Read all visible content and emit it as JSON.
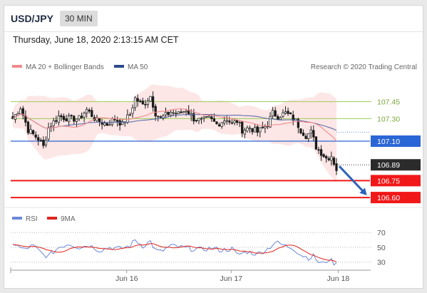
{
  "header": {
    "symbol": "USD/JPY",
    "timeframe": "30 MIN",
    "datetime": "Thursday, June 18, 2020 2:13:15 AM CET"
  },
  "legend": {
    "ma20_bollinger": "MA 20 + Bollinger Bands",
    "ma50": "MA 50",
    "credit": "Research © 2020 Trading Central",
    "rsi": "RSI",
    "rsi_ma": "9MA"
  },
  "colors": {
    "bollinger_fill": "#fde3e3",
    "ma20": "#f08a8a",
    "ma50": "#5a6ea8",
    "candle": "#1a1a1a",
    "green_level": "#9acd56",
    "blue_level": "#2b66d6",
    "red_level": "#f01818",
    "current_badge": "#2b2b2b",
    "arrow": "#2d63b8",
    "rsi": "#6b88d8",
    "rsi_ma": "#e0241c"
  },
  "chart_data": [
    {
      "type": "candlestick",
      "title": "USD/JPY",
      "timeframe": "30 MIN",
      "x_ticks": [
        {
          "label": "Jun 16",
          "bar": 43
        },
        {
          "label": "Jun 17",
          "bar": 84
        },
        {
          "label": "Jun 18",
          "bar": 126
        }
      ],
      "ylim": [
        106.55,
        107.65
      ],
      "bar_count": 128,
      "price_waypoints": [
        [
          0,
          107.3
        ],
        [
          3,
          107.4
        ],
        [
          6,
          107.2
        ],
        [
          10,
          107.12
        ],
        [
          12,
          107.05
        ],
        [
          14,
          107.22
        ],
        [
          18,
          107.32
        ],
        [
          22,
          107.3
        ],
        [
          26,
          107.3
        ],
        [
          29,
          107.38
        ],
        [
          33,
          107.28
        ],
        [
          37,
          107.25
        ],
        [
          40,
          107.3
        ],
        [
          43,
          107.25
        ],
        [
          46,
          107.34
        ],
        [
          48,
          107.48
        ],
        [
          51,
          107.42
        ],
        [
          54,
          107.5
        ],
        [
          56,
          107.35
        ],
        [
          58,
          107.3
        ],
        [
          62,
          107.36
        ],
        [
          65,
          107.34
        ],
        [
          68,
          107.38
        ],
        [
          71,
          107.3
        ],
        [
          74,
          107.28
        ],
        [
          77,
          107.3
        ],
        [
          80,
          107.25
        ],
        [
          84,
          107.3
        ],
        [
          86,
          107.25
        ],
        [
          88,
          107.28
        ],
        [
          90,
          107.2
        ],
        [
          93,
          107.22
        ],
        [
          96,
          107.18
        ],
        [
          100,
          107.25
        ],
        [
          102,
          107.35
        ],
        [
          104,
          107.32
        ],
        [
          107,
          107.35
        ],
        [
          109,
          107.32
        ],
        [
          111,
          107.28
        ],
        [
          113,
          107.2
        ],
        [
          115,
          107.15
        ],
        [
          117,
          107.18
        ],
        [
          119,
          107.05
        ],
        [
          121,
          107.0
        ],
        [
          123,
          106.95
        ],
        [
          125,
          106.97
        ],
        [
          127,
          106.85
        ]
      ],
      "levels": [
        {
          "value": 107.45,
          "label": "107.45",
          "kind": "resistance"
        },
        {
          "value": 107.3,
          "label": "107.30",
          "kind": "resistance"
        },
        {
          "value": 107.1,
          "label": "107.10",
          "kind": "pivot"
        },
        {
          "value": 106.89,
          "label": "106.89",
          "kind": "current"
        },
        {
          "value": 106.75,
          "label": "106.75",
          "kind": "support"
        },
        {
          "value": 106.6,
          "label": "106.60",
          "kind": "support"
        }
      ],
      "forecast_arrow": {
        "from": 106.89,
        "to": 106.6
      }
    },
    {
      "type": "line",
      "title": "RSI",
      "series": [
        {
          "name": "RSI"
        },
        {
          "name": "9MA"
        }
      ],
      "ylim": [
        22,
        76
      ],
      "levels": [
        {
          "value": 70,
          "label": "70"
        },
        {
          "value": 50,
          "label": "50"
        },
        {
          "value": 30,
          "label": "30"
        }
      ],
      "rsi_waypoints": [
        [
          0,
          56
        ],
        [
          4,
          47
        ],
        [
          8,
          52
        ],
        [
          12,
          40
        ],
        [
          14,
          38
        ],
        [
          18,
          50
        ],
        [
          22,
          55
        ],
        [
          26,
          50
        ],
        [
          30,
          53
        ],
        [
          34,
          46
        ],
        [
          38,
          50
        ],
        [
          42,
          48
        ],
        [
          46,
          52
        ],
        [
          48,
          60
        ],
        [
          51,
          52
        ],
        [
          54,
          58
        ],
        [
          56,
          46
        ],
        [
          58,
          44
        ],
        [
          62,
          52
        ],
        [
          66,
          50
        ],
        [
          70,
          48
        ],
        [
          74,
          47
        ],
        [
          78,
          49
        ],
        [
          82,
          46
        ],
        [
          86,
          48
        ],
        [
          88,
          40
        ],
        [
          92,
          44
        ],
        [
          96,
          41
        ],
        [
          100,
          48
        ],
        [
          103,
          57
        ],
        [
          107,
          52
        ],
        [
          110,
          49
        ],
        [
          113,
          40
        ],
        [
          116,
          36
        ],
        [
          118,
          38
        ],
        [
          120,
          30
        ],
        [
          122,
          28
        ],
        [
          124,
          34
        ],
        [
          126,
          29
        ],
        [
          127,
          27
        ]
      ]
    }
  ]
}
